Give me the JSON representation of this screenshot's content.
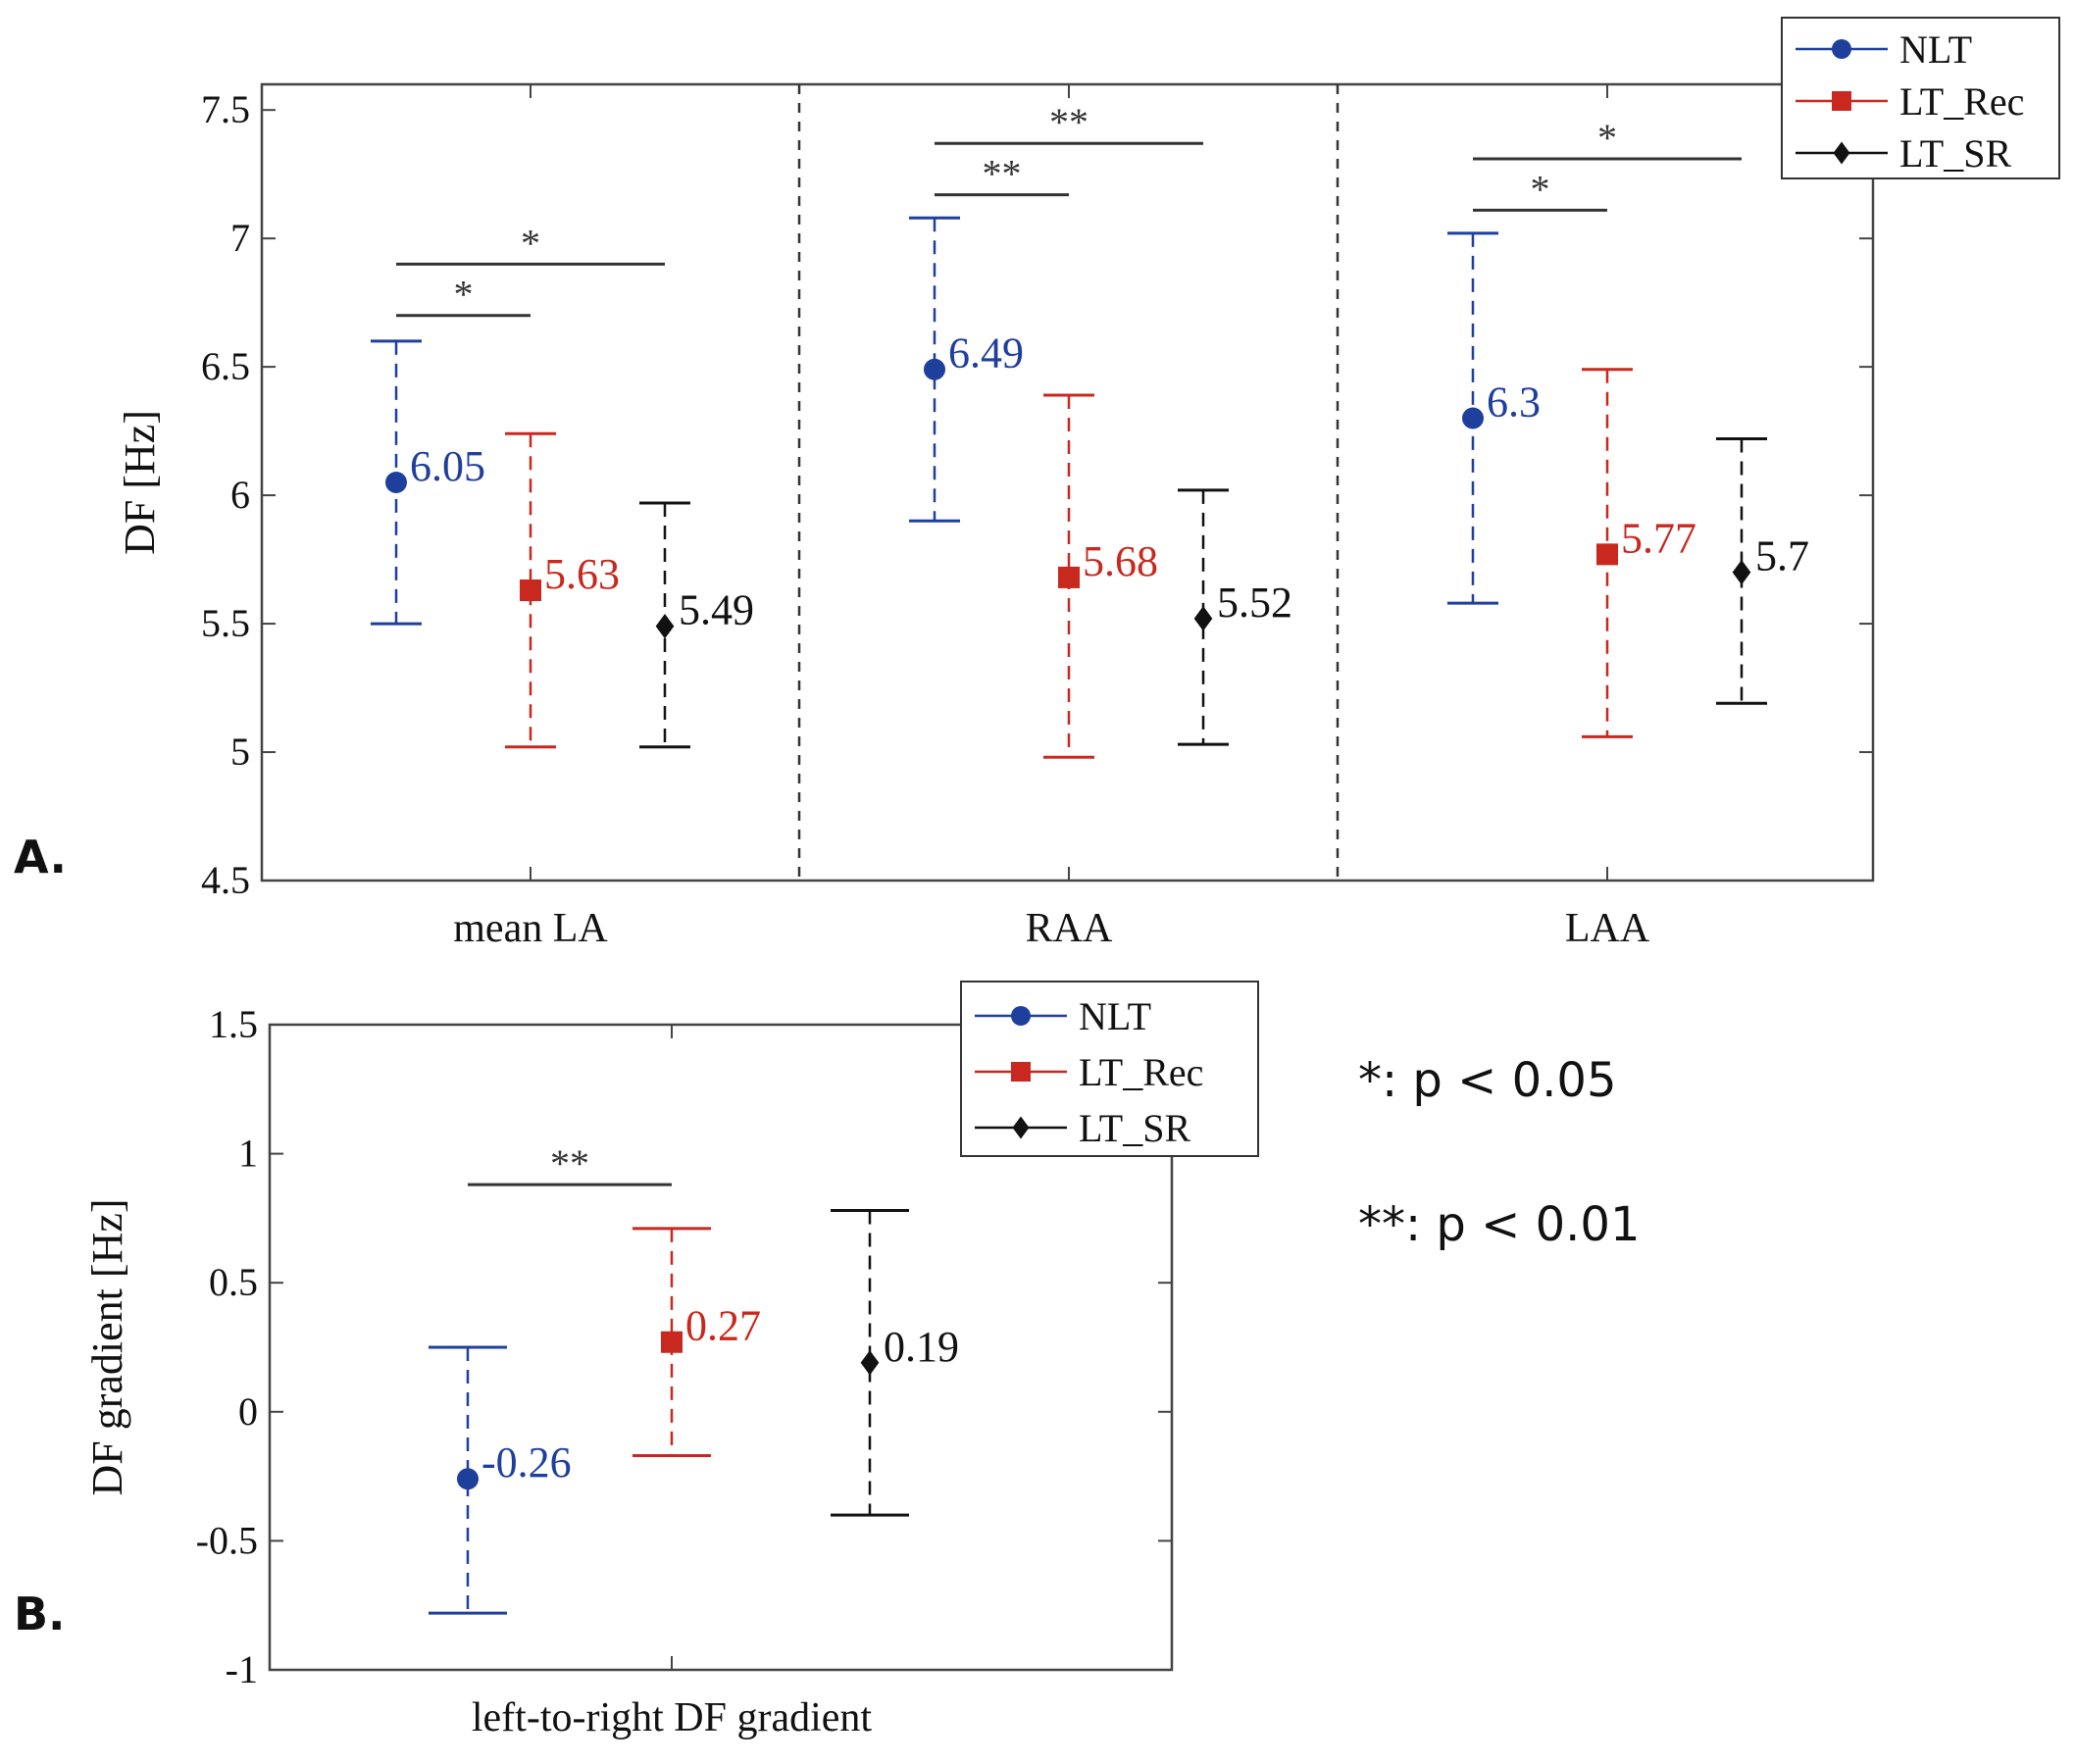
{
  "colors": {
    "NLT": "#1f3f9c",
    "LT_Rec": "#c8281e",
    "LT_SR": "#111111",
    "axis": "#444444"
  },
  "legend_labels": [
    "NLT",
    "LT_Rec",
    "LT_SR"
  ],
  "significance_note": {
    "single": "*: p < 0.05",
    "double": "**: p < 0.01"
  },
  "chart_data": [
    {
      "panel_label": "A.",
      "type": "scatter",
      "title": "",
      "xlabel": "",
      "ylabel": "DF [Hz]",
      "ylim": [
        4.5,
        7.6
      ],
      "yticks": [
        "4.5",
        "5",
        "5.5",
        "6",
        "6.5",
        "7",
        "7.5"
      ],
      "categories": [
        "mean LA",
        "RAA",
        "LAA"
      ],
      "series": [
        {
          "name": "NLT",
          "marker": "circle",
          "values": [
            6.05,
            6.49,
            6.3
          ],
          "lower": [
            5.5,
            5.9,
            5.58
          ],
          "upper": [
            6.6,
            7.08,
            7.02
          ],
          "labels": [
            "6.05",
            "6.49",
            "6.3"
          ]
        },
        {
          "name": "LT_Rec",
          "marker": "square",
          "values": [
            5.63,
            5.68,
            5.77
          ],
          "lower": [
            5.02,
            4.98,
            5.06
          ],
          "upper": [
            6.24,
            6.39,
            6.49
          ],
          "labels": [
            "5.63",
            "5.68",
            "5.77"
          ]
        },
        {
          "name": "LT_SR",
          "marker": "diamond",
          "values": [
            5.49,
            5.52,
            5.7
          ],
          "lower": [
            5.02,
            5.03,
            5.19
          ],
          "upper": [
            5.97,
            6.02,
            6.22
          ],
          "labels": [
            "5.49",
            "5.52",
            "5.7"
          ]
        }
      ],
      "significance": [
        {
          "category": 0,
          "from": "NLT",
          "to": "LT_Rec",
          "y": 6.7,
          "label": "*"
        },
        {
          "category": 0,
          "from": "NLT",
          "to": "LT_SR",
          "y": 6.9,
          "label": "*"
        },
        {
          "category": 1,
          "from": "NLT",
          "to": "LT_Rec",
          "y": 7.17,
          "label": "**"
        },
        {
          "category": 1,
          "from": "NLT",
          "to": "LT_SR",
          "y": 7.37,
          "label": "**"
        },
        {
          "category": 2,
          "from": "NLT",
          "to": "LT_Rec",
          "y": 7.11,
          "label": "*"
        },
        {
          "category": 2,
          "from": "NLT",
          "to": "LT_SR",
          "y": 7.31,
          "label": "*"
        }
      ],
      "legend": "top-right",
      "grid": false
    },
    {
      "panel_label": "B.",
      "type": "scatter",
      "title": "",
      "xlabel": "",
      "ylabel": "DF gradient [Hz]",
      "ylim": [
        -1,
        1.5
      ],
      "yticks": [
        "-1",
        "-0.5",
        "0",
        "0.5",
        "1",
        "1.5"
      ],
      "categories": [
        "left-to-right DF gradient"
      ],
      "series": [
        {
          "name": "NLT",
          "marker": "circle",
          "values": [
            -0.26
          ],
          "lower": [
            -0.78
          ],
          "upper": [
            0.25
          ],
          "labels": [
            "-0.26"
          ]
        },
        {
          "name": "LT_Rec",
          "marker": "square",
          "values": [
            0.27
          ],
          "lower": [
            -0.17
          ],
          "upper": [
            0.71
          ],
          "labels": [
            "0.27"
          ]
        },
        {
          "name": "LT_SR",
          "marker": "diamond",
          "values": [
            0.19
          ],
          "lower": [
            -0.4
          ],
          "upper": [
            0.78
          ],
          "labels": [
            "0.19"
          ]
        }
      ],
      "significance": [
        {
          "category": 0,
          "from": "NLT",
          "to": "LT_Rec",
          "y": 0.88,
          "label": "**"
        }
      ],
      "legend": "top-right",
      "grid": false
    }
  ]
}
